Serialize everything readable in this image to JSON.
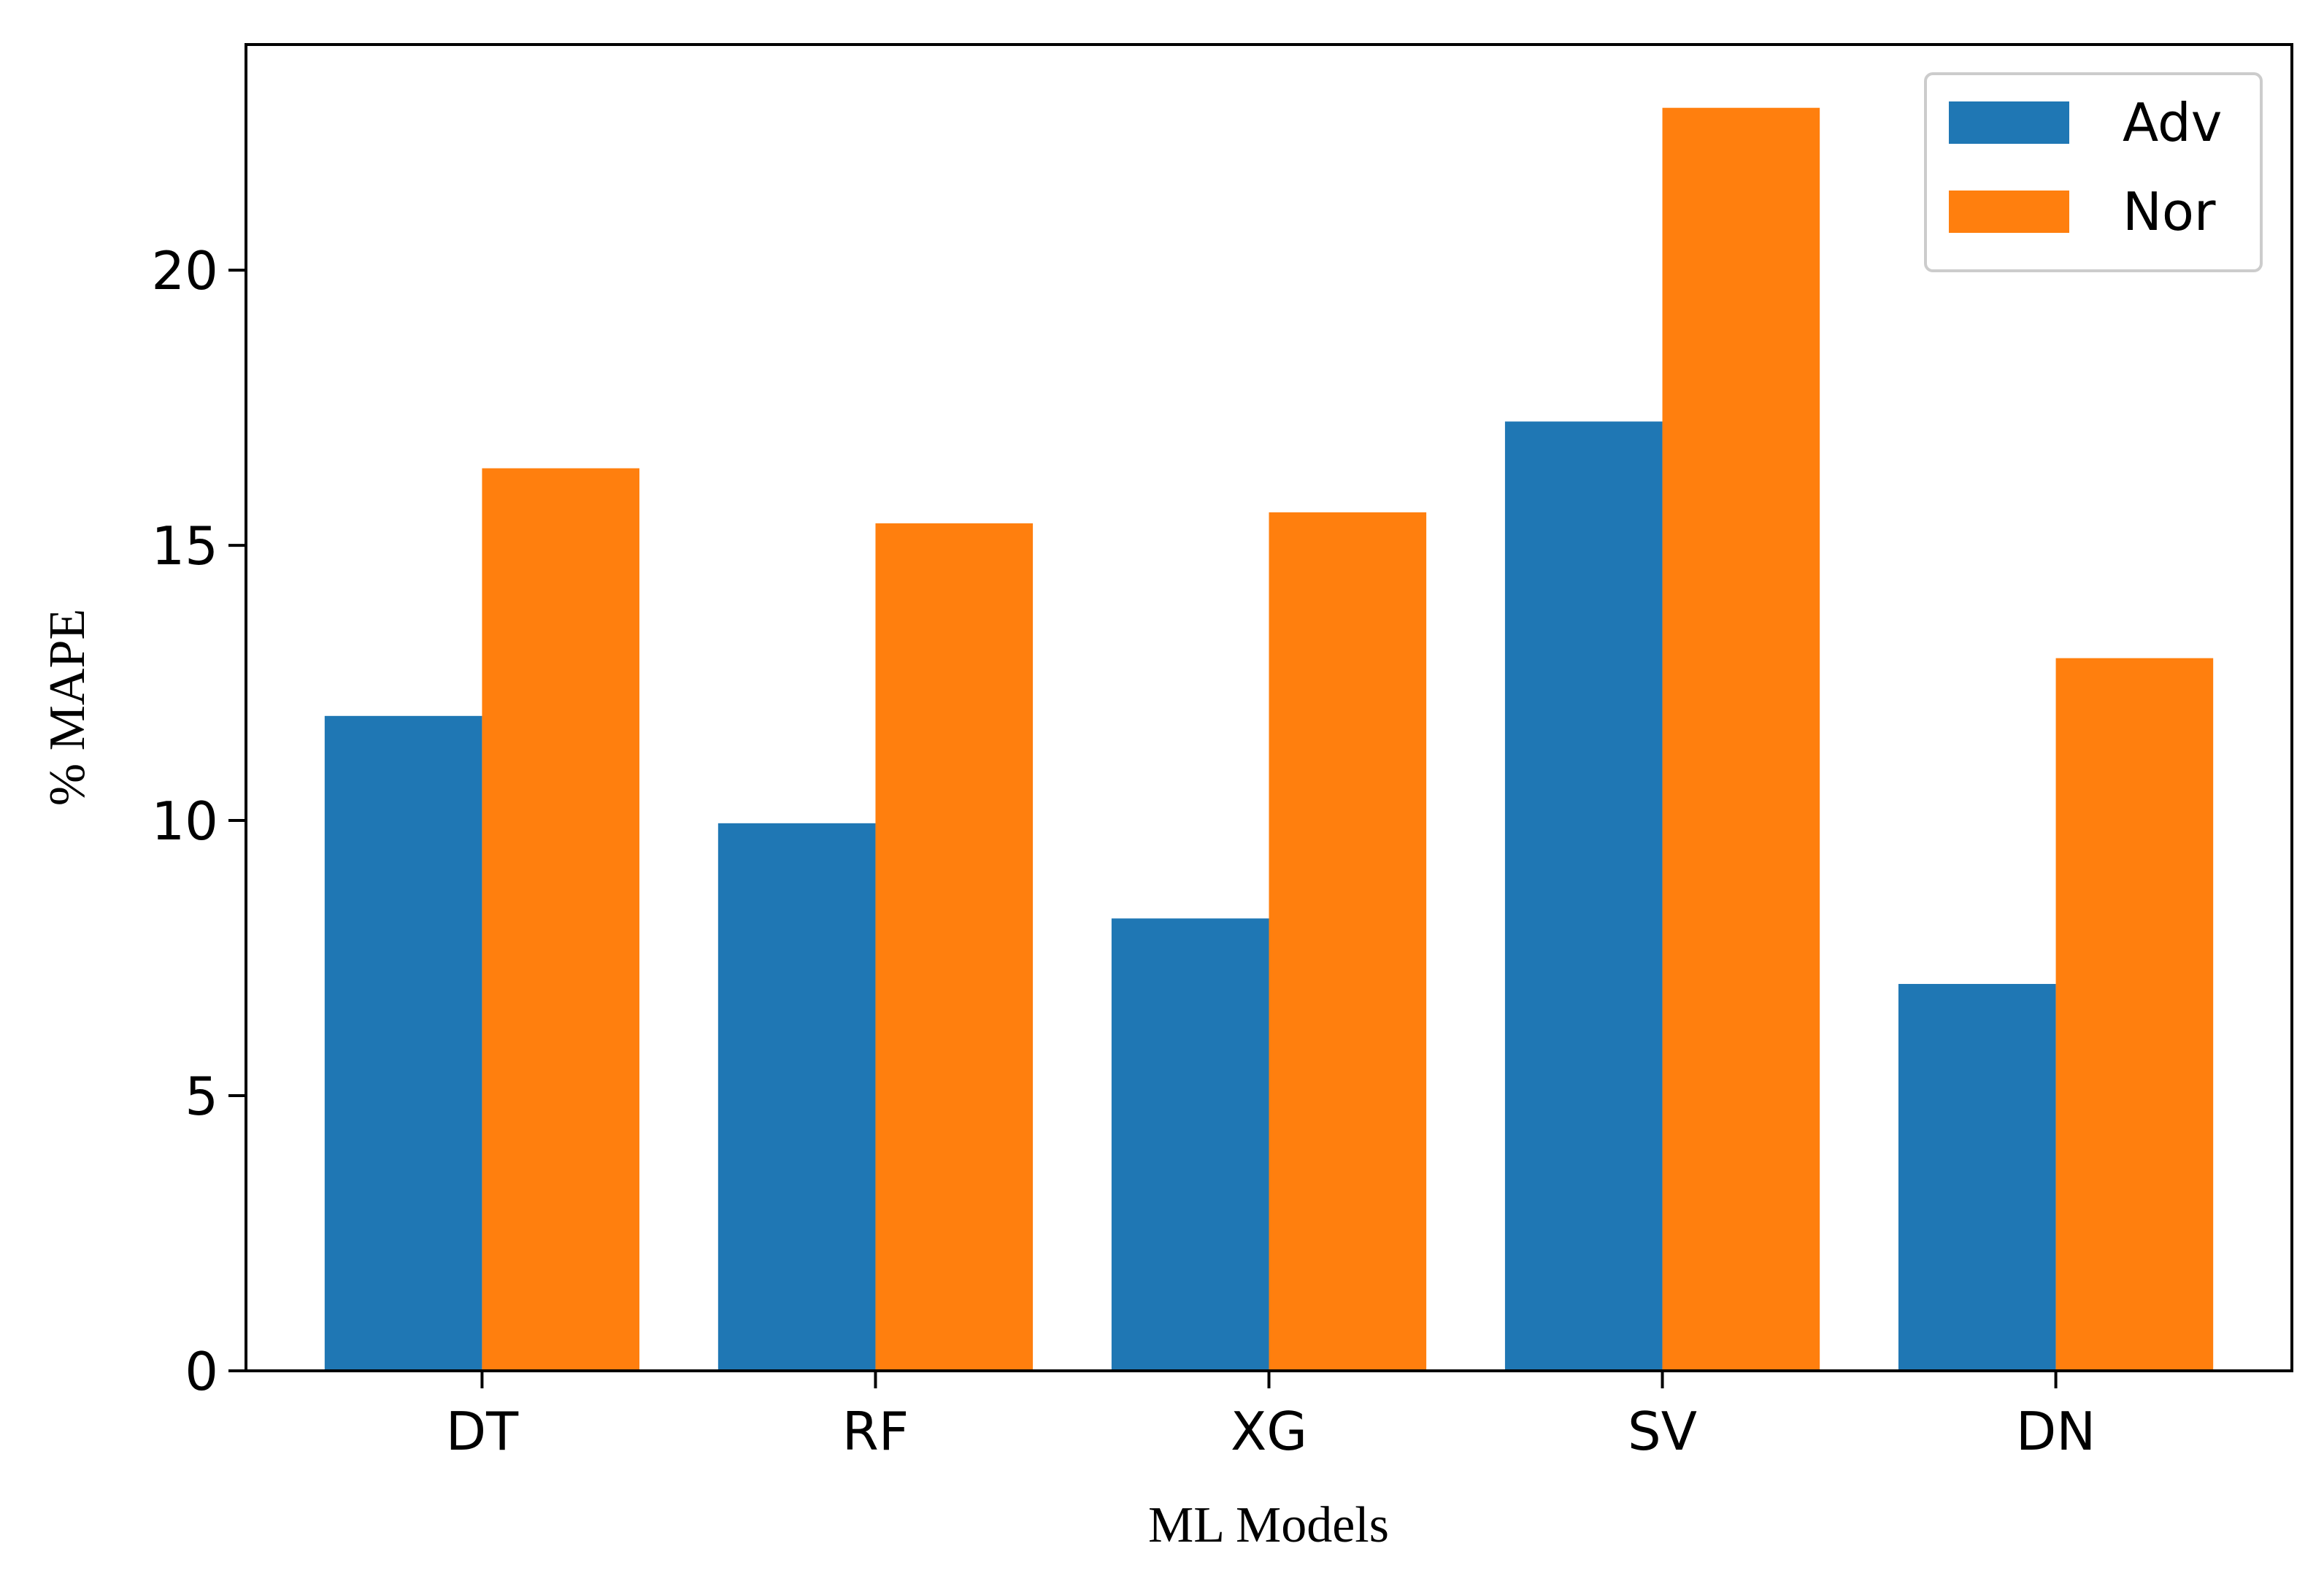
{
  "chart_data": {
    "type": "bar",
    "title": "",
    "xlabel": "ML Models",
    "ylabel": "% MAPE",
    "categories": [
      "DT",
      "RF",
      "XG",
      "SV",
      "DN"
    ],
    "series": [
      {
        "name": "Adv",
        "color": "#1f77b4",
        "values": [
          11.9,
          9.95,
          8.22,
          17.25,
          7.03
        ]
      },
      {
        "name": "Nor",
        "color": "#ff7f0e",
        "values": [
          16.4,
          15.4,
          15.6,
          22.95,
          12.95
        ]
      }
    ],
    "ylim": [
      0,
      24.1
    ],
    "yticks": [
      0,
      5,
      10,
      15,
      20
    ],
    "grid": false,
    "legend": "top-right"
  }
}
